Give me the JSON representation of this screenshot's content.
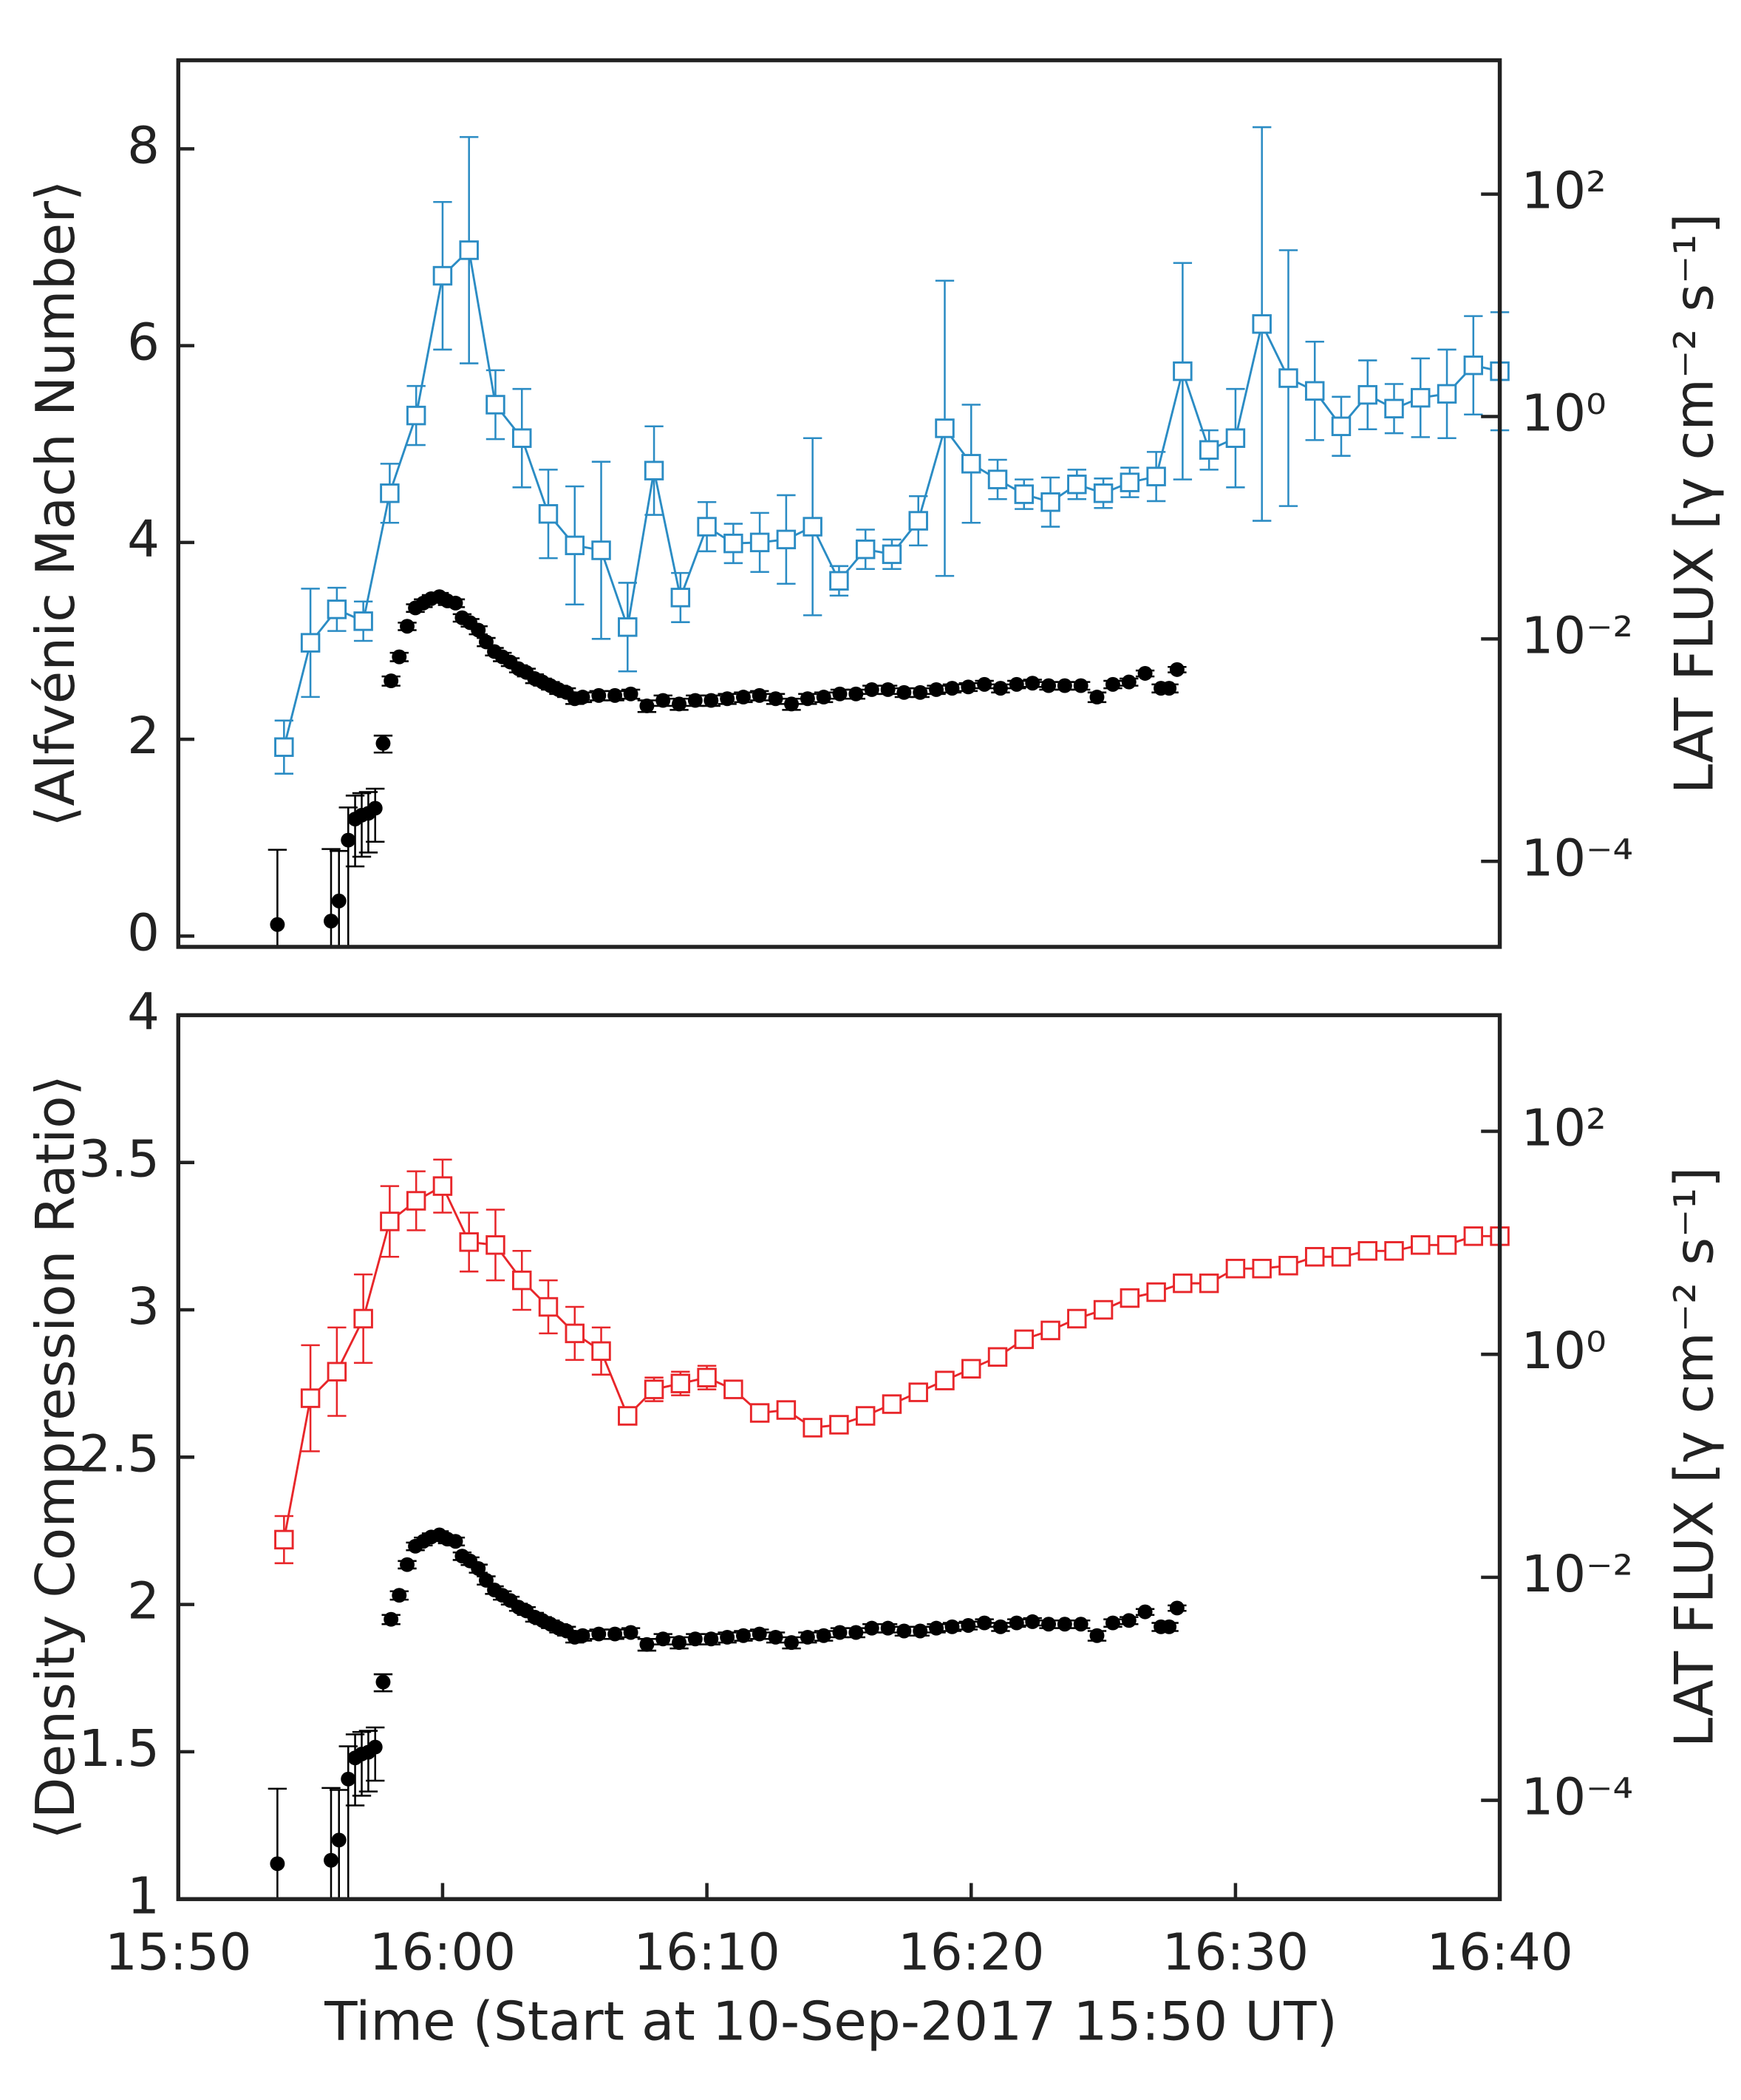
{
  "chart_data": [
    {
      "type": "line",
      "y_label": "⟨Alfvénic Mach Number⟩",
      "y2_label": "LAT FLUX [γ cm⁻² s⁻¹]",
      "xlim": [
        0,
        50
      ],
      "ylim": [
        -0.11,
        8.9
      ],
      "yticks": [
        0,
        2,
        4,
        6,
        8
      ],
      "y2lim": [
        1.7e-05,
        1600
      ],
      "y2_log": true,
      "y2ticks": [
        {
          "value": 0.0001,
          "label": "10⁻⁴"
        },
        {
          "value": 0.01,
          "label": "10⁻²"
        },
        {
          "value": 1,
          "label": "10⁰"
        },
        {
          "value": 100,
          "label": "10²"
        }
      ],
      "series": [
        {
          "color": "#2b8cc4",
          "marker": "square",
          "line": true,
          "x": [
            4,
            5,
            6,
            7,
            8,
            9,
            10,
            11,
            12,
            13,
            14,
            15,
            16,
            17,
            18,
            19,
            20,
            21,
            22,
            23,
            24,
            25,
            26,
            27,
            28,
            29,
            30,
            31,
            32,
            33,
            34,
            35,
            36,
            37,
            38,
            39,
            40,
            41,
            42,
            43,
            44,
            45,
            46,
            47,
            48,
            49,
            50
          ],
          "values": [
            1.92,
            2.98,
            3.32,
            3.2,
            4.5,
            5.29,
            6.71,
            6.97,
            5.4,
            5.06,
            4.29,
            3.97,
            3.92,
            3.14,
            4.73,
            3.44,
            4.16,
            3.99,
            4.0,
            4.03,
            4.16,
            3.61,
            3.93,
            3.88,
            4.22,
            5.16,
            4.8,
            4.64,
            4.49,
            4.41,
            4.59,
            4.5,
            4.61,
            4.67,
            5.74,
            4.94,
            5.06,
            6.22,
            5.67,
            5.54,
            5.18,
            5.5,
            5.36,
            5.47,
            5.51,
            5.8,
            5.74
          ],
          "errors": [
            0.27,
            0.55,
            0.22,
            0.2,
            0.3,
            0.3,
            0.75,
            1.15,
            0.35,
            0.5,
            0.45,
            0.6,
            0.9,
            0.45,
            0.45,
            0.25,
            0.25,
            0.2,
            0.3,
            0.45,
            0.9,
            0.15,
            0.2,
            0.15,
            0.25,
            1.5,
            0.6,
            0.2,
            0.15,
            0.25,
            0.15,
            0.15,
            0.15,
            0.25,
            1.1,
            0.2,
            0.5,
            2.0,
            1.3,
            0.5,
            0.3,
            0.35,
            0.25,
            0.4,
            0.45,
            0.5,
            0.6
          ]
        },
        {
          "color": "#000000",
          "marker": "circle",
          "line": false,
          "axis": "y2",
          "x": [
            3.75,
            5.78,
            6.08,
            6.43,
            6.69,
            6.94,
            7.19,
            7.45,
            7.75,
            8.05,
            8.36,
            8.66,
            8.97,
            9.27,
            9.57,
            9.88,
            10.18,
            10.49,
            10.74,
            11.04,
            11.35,
            11.65,
            11.96,
            12.26,
            12.56,
            12.87,
            13.17,
            13.48,
            13.78,
            14.08,
            14.39,
            14.69,
            15.0,
            15.3,
            15.91,
            16.52,
            17.12,
            17.73,
            18.34,
            18.95,
            19.56,
            20.16,
            20.77,
            21.38,
            21.99,
            22.6,
            23.2,
            23.81,
            24.42,
            25.03,
            25.64,
            26.24,
            26.85,
            27.46,
            28.07,
            28.68,
            29.28,
            29.89,
            30.5,
            31.11,
            31.72,
            32.32,
            32.93,
            33.54,
            34.15,
            34.76,
            35.36,
            35.97,
            36.58,
            37.18,
            37.49,
            37.79
          ],
          "values": [
            2.7e-05,
            2.9e-05,
            4.4e-05,
            0.000155,
            0.00024,
            0.00026,
            0.00027,
            0.0003,
            0.00115,
            0.0042,
            0.0069,
            0.013,
            0.019,
            0.021,
            0.023,
            0.024,
            0.022,
            0.021,
            0.0155,
            0.014,
            0.012,
            0.0094,
            0.0077,
            0.0069,
            0.0062,
            0.0054,
            0.005,
            0.0044,
            0.0041,
            0.0038,
            0.0035,
            0.0033,
            0.0029,
            0.003,
            0.0031,
            0.0031,
            0.0032,
            0.0025,
            0.0028,
            0.0026,
            0.0028,
            0.0028,
            0.0029,
            0.003,
            0.0031,
            0.0029,
            0.0026,
            0.0029,
            0.003,
            0.0032,
            0.0032,
            0.0035,
            0.0035,
            0.0033,
            0.0033,
            0.0035,
            0.0036,
            0.0037,
            0.0039,
            0.0036,
            0.0039,
            0.004,
            0.0038,
            0.0038,
            0.0038,
            0.003,
            0.0039,
            0.0041,
            0.0049,
            0.0036,
            0.0036,
            0.0053
          ],
          "errors": [
            0.0001,
            0.0001,
            8e-05,
            0.00015,
            0.00015,
            0.00015,
            0.00015,
            0.00015,
            0.0002,
            0.0004,
            0.0006,
            0.001,
            0.0015,
            0.0017,
            0.0018,
            0.0019,
            0.0018,
            0.0017,
            0.0012,
            0.0011,
            0.001,
            0.0008,
            0.0006,
            0.0006,
            0.0005,
            0.0004,
            0.0004,
            0.0004,
            0.0003,
            0.0003,
            0.0003,
            0.0003,
            0.0003,
            0.0003,
            0.0003,
            0.0003,
            0.0003,
            0.0003,
            0.0003,
            0.0003,
            0.0003,
            0.0003,
            0.0003,
            0.0003,
            0.0003,
            0.0003,
            0.0003,
            0.0003,
            0.0003,
            0.0003,
            0.0003,
            0.0003,
            0.0003,
            0.0003,
            0.0003,
            0.0003,
            0.0003,
            0.0003,
            0.0003,
            0.0003,
            0.0003,
            0.0003,
            0.0003,
            0.0003,
            0.0003,
            0.0003,
            0.0003,
            0.0003,
            0.0003,
            0.0003,
            0.0003,
            0.0003
          ]
        }
      ]
    },
    {
      "type": "line",
      "y_label": "⟨Density Compression Ratio⟩",
      "y2_label": "LAT FLUX [γ cm⁻² s⁻¹]",
      "x_label": "Time (Start at 10-Sep-2017 15:50 UT)",
      "xlim": [
        0,
        50
      ],
      "xticks": [
        {
          "value": 0,
          "label": "15:50"
        },
        {
          "value": 10,
          "label": "16:00"
        },
        {
          "value": 20,
          "label": "16:10"
        },
        {
          "value": 30,
          "label": "16:20"
        },
        {
          "value": 40,
          "label": "16:30"
        },
        {
          "value": 50,
          "label": "16:40"
        }
      ],
      "ylim": [
        1,
        4
      ],
      "yticks": [
        1,
        1.5,
        2,
        2.5,
        3,
        3.5,
        4
      ],
      "y2lim": [
        1.3e-05,
        1100
      ],
      "y2_log": true,
      "y2ticks": [
        {
          "value": 0.0001,
          "label": "10⁻⁴"
        },
        {
          "value": 0.01,
          "label": "10⁻²"
        },
        {
          "value": 1,
          "label": "10⁰"
        },
        {
          "value": 100,
          "label": "10²"
        }
      ],
      "series": [
        {
          "color": "#e8262a",
          "marker": "square",
          "line": true,
          "x": [
            4,
            5,
            6,
            7,
            8,
            9,
            10,
            11,
            12,
            13,
            14,
            15,
            16,
            17,
            18,
            19,
            20,
            21,
            22,
            23,
            24,
            25,
            26,
            27,
            28,
            29,
            30,
            31,
            32,
            33,
            34,
            35,
            36,
            37,
            38,
            39,
            40,
            41,
            42,
            43,
            44,
            45,
            46,
            47,
            48,
            49,
            50
          ],
          "values": [
            2.22,
            2.7,
            2.79,
            2.97,
            3.3,
            3.37,
            3.42,
            3.23,
            3.22,
            3.1,
            3.01,
            2.92,
            2.86,
            2.64,
            2.73,
            2.75,
            2.77,
            2.73,
            2.65,
            2.66,
            2.6,
            2.61,
            2.64,
            2.68,
            2.72,
            2.76,
            2.8,
            2.84,
            2.9,
            2.93,
            2.97,
            3.0,
            3.04,
            3.06,
            3.09,
            3.09,
            3.14,
            3.14,
            3.15,
            3.18,
            3.18,
            3.2,
            3.2,
            3.22,
            3.22,
            3.25,
            3.25
          ],
          "errors": [
            0.08,
            0.18,
            0.15,
            0.15,
            0.12,
            0.1,
            0.09,
            0.1,
            0.12,
            0.1,
            0.09,
            0.09,
            0.08,
            0.01,
            0.04,
            0.04,
            0.04,
            0.02,
            0.02,
            0.02,
            0.02,
            0.02,
            0.02,
            0.02,
            0.02,
            0.02,
            0.02,
            0.02,
            0.02,
            0.02,
            0.02,
            0.02,
            0.02,
            0.02,
            0.02,
            0.02,
            0.02,
            0.02,
            0.02,
            0.02,
            0.02,
            0.02,
            0.02,
            0.02,
            0.02,
            0.02,
            0.02
          ]
        },
        {
          "color": "#000000",
          "marker": "circle",
          "line": false,
          "axis": "y2",
          "x": [
            3.75,
            5.78,
            6.08,
            6.43,
            6.69,
            6.94,
            7.19,
            7.45,
            7.75,
            8.05,
            8.36,
            8.66,
            8.97,
            9.27,
            9.57,
            9.88,
            10.18,
            10.49,
            10.74,
            11.04,
            11.35,
            11.65,
            11.96,
            12.26,
            12.56,
            12.87,
            13.17,
            13.48,
            13.78,
            14.08,
            14.39,
            14.69,
            15.0,
            15.3,
            15.91,
            16.52,
            17.12,
            17.73,
            18.34,
            18.95,
            19.56,
            20.16,
            20.77,
            21.38,
            21.99,
            22.6,
            23.2,
            23.81,
            24.42,
            25.03,
            25.64,
            26.24,
            26.85,
            27.46,
            28.07,
            28.68,
            29.28,
            29.89,
            30.5,
            31.11,
            31.72,
            32.32,
            32.93,
            33.54,
            34.15,
            34.76,
            35.36,
            35.97,
            36.58,
            37.18,
            37.49,
            37.79
          ],
          "values": [
            2.7e-05,
            2.9e-05,
            4.4e-05,
            0.000155,
            0.00024,
            0.00026,
            0.00027,
            0.0003,
            0.00115,
            0.0042,
            0.0069,
            0.013,
            0.019,
            0.021,
            0.023,
            0.024,
            0.022,
            0.021,
            0.0155,
            0.014,
            0.012,
            0.0094,
            0.0077,
            0.0069,
            0.0062,
            0.0054,
            0.005,
            0.0044,
            0.0041,
            0.0038,
            0.0035,
            0.0033,
            0.0029,
            0.003,
            0.0031,
            0.0031,
            0.0032,
            0.0025,
            0.0028,
            0.0026,
            0.0028,
            0.0028,
            0.0029,
            0.003,
            0.0031,
            0.0029,
            0.0026,
            0.0029,
            0.003,
            0.0032,
            0.0032,
            0.0035,
            0.0035,
            0.0033,
            0.0033,
            0.0035,
            0.0036,
            0.0037,
            0.0039,
            0.0036,
            0.0039,
            0.004,
            0.0038,
            0.0038,
            0.0038,
            0.003,
            0.0039,
            0.0041,
            0.0049,
            0.0036,
            0.0036,
            0.0053
          ],
          "errors": [
            0.0001,
            0.0001,
            8e-05,
            0.00015,
            0.00015,
            0.00015,
            0.00015,
            0.00015,
            0.0002,
            0.0004,
            0.0006,
            0.001,
            0.0015,
            0.0017,
            0.0018,
            0.0019,
            0.0018,
            0.0017,
            0.0012,
            0.0011,
            0.001,
            0.0008,
            0.0006,
            0.0006,
            0.0005,
            0.0004,
            0.0004,
            0.0004,
            0.0003,
            0.0003,
            0.0003,
            0.0003,
            0.0003,
            0.0003,
            0.0003,
            0.0003,
            0.0003,
            0.0003,
            0.0003,
            0.0003,
            0.0003,
            0.0003,
            0.0003,
            0.0003,
            0.0003,
            0.0003,
            0.0003,
            0.0003,
            0.0003,
            0.0003,
            0.0003,
            0.0003,
            0.0003,
            0.0003,
            0.0003,
            0.0003,
            0.0003,
            0.0003,
            0.0003,
            0.0003,
            0.0003,
            0.0003,
            0.0003,
            0.0003,
            0.0003,
            0.0003,
            0.0003,
            0.0003,
            0.0003,
            0.0003,
            0.0003,
            0.0003
          ]
        }
      ]
    }
  ]
}
